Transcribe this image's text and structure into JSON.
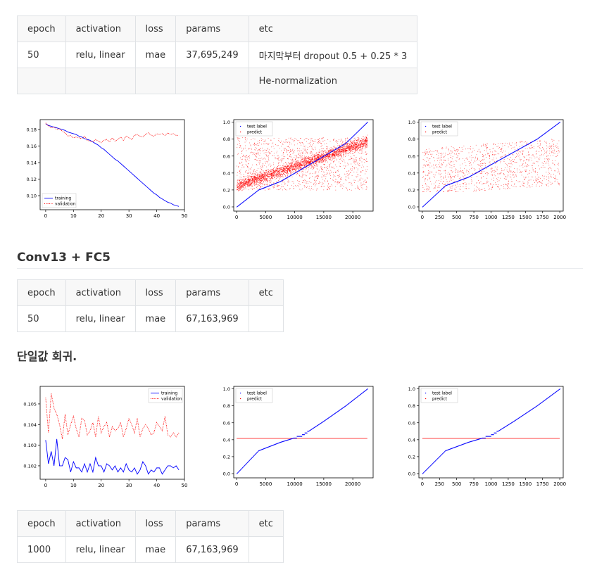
{
  "table1": {
    "headers": [
      "epoch",
      "activation",
      "loss",
      "params",
      "etc"
    ],
    "rows": [
      [
        "50",
        "relu, linear",
        "mae",
        "37,695,249",
        "마지막부터 dropout 0.5 + 0.25 * 3"
      ],
      [
        "",
        "",
        "",
        "",
        "He-normalization"
      ]
    ]
  },
  "heading2": "Conv13 + FC5",
  "table2": {
    "headers": [
      "epoch",
      "activation",
      "loss",
      "params",
      "etc"
    ],
    "rows": [
      [
        "50",
        "relu, linear",
        "mae",
        "67,163,969",
        ""
      ]
    ]
  },
  "heading3": "단일값 회귀.",
  "table3": {
    "headers": [
      "epoch",
      "activation",
      "loss",
      "params",
      "etc"
    ],
    "rows": [
      [
        "1000",
        "relu, linear",
        "mae",
        "67,163,969",
        ""
      ]
    ]
  },
  "chart_data": [
    {
      "type": "line",
      "legend_position": "lower-left",
      "x": [
        0,
        1,
        2,
        3,
        4,
        5,
        6,
        7,
        8,
        9,
        10,
        11,
        12,
        13,
        14,
        15,
        16,
        17,
        18,
        19,
        20,
        21,
        22,
        23,
        24,
        25,
        26,
        27,
        28,
        29,
        30,
        31,
        32,
        33,
        34,
        35,
        36,
        37,
        38,
        39,
        40,
        41,
        42,
        43,
        44,
        45,
        46,
        47,
        48
      ],
      "series": [
        {
          "name": "training",
          "color": "#0000ff",
          "style": "solid",
          "values": [
            0.187,
            0.185,
            0.184,
            0.183,
            0.182,
            0.181,
            0.18,
            0.179,
            0.177,
            0.176,
            0.175,
            0.174,
            0.172,
            0.171,
            0.169,
            0.168,
            0.167,
            0.165,
            0.163,
            0.161,
            0.158,
            0.156,
            0.153,
            0.15,
            0.147,
            0.144,
            0.142,
            0.139,
            0.136,
            0.133,
            0.13,
            0.127,
            0.124,
            0.121,
            0.118,
            0.115,
            0.112,
            0.109,
            0.106,
            0.103,
            0.101,
            0.098,
            0.096,
            0.094,
            0.092,
            0.091,
            0.089,
            0.088,
            0.087
          ]
        },
        {
          "name": "validation",
          "color": "#ff0000",
          "style": "dotted",
          "values": [
            0.188,
            0.184,
            0.182,
            0.183,
            0.18,
            0.181,
            0.178,
            0.176,
            0.172,
            0.173,
            0.17,
            0.171,
            0.17,
            0.169,
            0.172,
            0.167,
            0.166,
            0.165,
            0.168,
            0.166,
            0.164,
            0.167,
            0.168,
            0.165,
            0.17,
            0.166,
            0.168,
            0.171,
            0.167,
            0.172,
            0.17,
            0.168,
            0.173,
            0.174,
            0.172,
            0.171,
            0.174,
            0.176,
            0.173,
            0.172,
            0.175,
            0.174,
            0.175,
            0.173,
            0.176,
            0.174,
            0.175,
            0.173,
            0.173
          ]
        }
      ],
      "xlim": [
        -2,
        50
      ],
      "ylim": [
        0.083,
        0.192
      ],
      "xticks": [
        0,
        10,
        20,
        30,
        40,
        50
      ],
      "yticks": [
        0.1,
        0.12,
        0.14,
        0.16,
        0.18
      ],
      "ytick_labels": [
        "0.10",
        "0.12",
        "0.14",
        "0.16",
        "0.18"
      ]
    },
    {
      "type": "scatter",
      "legend_position": "top-left",
      "n_points": 22500,
      "series": [
        {
          "name": "test label",
          "color": "#0000ff",
          "description_values": [
            0.0,
            0.2,
            0.3,
            0.45,
            0.6,
            0.75,
            1.0
          ]
        },
        {
          "name": "predict",
          "color": "#ff0000",
          "description_values": [
            0.2,
            0.8
          ]
        }
      ],
      "xlim": [
        -500,
        23500
      ],
      "ylim": [
        -0.05,
        1.03
      ],
      "xticks": [
        0,
        5000,
        10000,
        15000,
        20000
      ],
      "yticks": [
        0.0,
        0.2,
        0.4,
        0.6,
        0.8,
        1.0
      ],
      "ytick_labels": [
        "0.0",
        "0.2",
        "0.4",
        "0.6",
        "0.8",
        "1.0"
      ]
    },
    {
      "type": "scatter",
      "legend_position": "top-left",
      "n_points": 2000,
      "series": [
        {
          "name": "test label",
          "color": "#0000ff",
          "description_values": [
            0.0,
            0.25,
            0.35,
            0.5,
            0.65,
            0.8,
            1.0
          ]
        },
        {
          "name": "predict",
          "color": "#ff0000",
          "description_values": [
            0.2,
            0.75
          ]
        }
      ],
      "xlim": [
        -50,
        2050
      ],
      "ylim": [
        -0.05,
        1.03
      ],
      "xticks": [
        0,
        250,
        500,
        750,
        1000,
        1250,
        1500,
        1750,
        2000
      ],
      "yticks": [
        0.0,
        0.2,
        0.4,
        0.6,
        0.8,
        1.0
      ],
      "ytick_labels": [
        "0.0",
        "0.2",
        "0.4",
        "0.6",
        "0.8",
        "1.0"
      ]
    },
    {
      "type": "line",
      "legend_position": "top-right",
      "x": [
        0,
        1,
        2,
        3,
        4,
        5,
        6,
        7,
        8,
        9,
        10,
        11,
        12,
        13,
        14,
        15,
        16,
        17,
        18,
        19,
        20,
        21,
        22,
        23,
        24,
        25,
        26,
        27,
        28,
        29,
        30,
        31,
        32,
        33,
        34,
        35,
        36,
        37,
        38,
        39,
        40,
        41,
        42,
        43,
        44,
        45,
        46,
        47,
        48
      ],
      "series": [
        {
          "name": "training",
          "color": "#0000ff",
          "style": "solid",
          "values": [
            0.10325,
            0.1021,
            0.1027,
            0.102,
            0.1033,
            0.102,
            0.102,
            0.1024,
            0.1023,
            0.1017,
            0.1022,
            0.1019,
            0.1019,
            0.1017,
            0.1021,
            0.1017,
            0.1021,
            0.1017,
            0.1024,
            0.102,
            0.102,
            0.1017,
            0.1021,
            0.102,
            0.1018,
            0.102,
            0.1017,
            0.1019,
            0.1017,
            0.1021,
            0.1018,
            0.1017,
            0.1019,
            0.1016,
            0.1018,
            0.1022,
            0.102,
            0.1016,
            0.1018,
            0.1017,
            0.1019,
            0.1019,
            0.1016,
            0.1018,
            0.102,
            0.102,
            0.1019,
            0.102,
            0.1018
          ]
        },
        {
          "name": "validation",
          "color": "#ff0000",
          "style": "dotted",
          "values": [
            0.1053,
            0.1036,
            0.1055,
            0.1048,
            0.1045,
            0.104,
            0.1033,
            0.1045,
            0.1035,
            0.104,
            0.1044,
            0.1038,
            0.1034,
            0.1043,
            0.1042,
            0.1035,
            0.1037,
            0.1041,
            0.1034,
            0.1044,
            0.1036,
            0.1039,
            0.1041,
            0.1034,
            0.1039,
            0.1037,
            0.1038,
            0.1041,
            0.1034,
            0.1038,
            0.1043,
            0.104,
            0.1036,
            0.1043,
            0.1034,
            0.1038,
            0.104,
            0.1038,
            0.1035,
            0.1036,
            0.1041,
            0.1039,
            0.1037,
            0.1044,
            0.1035,
            0.1034,
            0.1036,
            0.1034,
            0.1036
          ]
        }
      ],
      "xlim": [
        -2,
        50
      ],
      "ylim": [
        0.10135,
        0.10585
      ],
      "xticks": [
        0,
        10,
        20,
        30,
        40,
        50
      ],
      "yticks": [
        0.102,
        0.103,
        0.104,
        0.105
      ],
      "ytick_labels": [
        "0.102",
        "0.103",
        "0.104",
        "0.105"
      ]
    },
    {
      "type": "scatter",
      "legend_position": "top-left",
      "n_points": 22500,
      "series": [
        {
          "name": "test label",
          "color": "#0000ff",
          "description_values": [
            0.0,
            0.27,
            0.37,
            0.45,
            0.62,
            0.8,
            1.0
          ]
        },
        {
          "name": "predict",
          "color": "#ff0000",
          "constant": 0.415
        }
      ],
      "xlim": [
        -500,
        23500
      ],
      "ylim": [
        -0.05,
        1.03
      ],
      "xticks": [
        0,
        5000,
        10000,
        15000,
        20000
      ],
      "yticks": [
        0.0,
        0.2,
        0.4,
        0.6,
        0.8,
        1.0
      ],
      "ytick_labels": [
        "0.0",
        "0.2",
        "0.4",
        "0.6",
        "0.8",
        "1.0"
      ]
    },
    {
      "type": "scatter",
      "legend_position": "top-left",
      "n_points": 2000,
      "series": [
        {
          "name": "test label",
          "color": "#0000ff",
          "description_values": [
            0.0,
            0.27,
            0.37,
            0.45,
            0.62,
            0.8,
            1.0
          ]
        },
        {
          "name": "predict",
          "color": "#ff0000",
          "constant": 0.415
        }
      ],
      "xlim": [
        -50,
        2050
      ],
      "ylim": [
        -0.05,
        1.03
      ],
      "xticks": [
        0,
        250,
        500,
        750,
        1000,
        1250,
        1500,
        1750,
        2000
      ],
      "yticks": [
        0.0,
        0.2,
        0.4,
        0.6,
        0.8,
        1.0
      ],
      "ytick_labels": [
        "0.0",
        "0.2",
        "0.4",
        "0.6",
        "0.8",
        "1.0"
      ]
    }
  ]
}
